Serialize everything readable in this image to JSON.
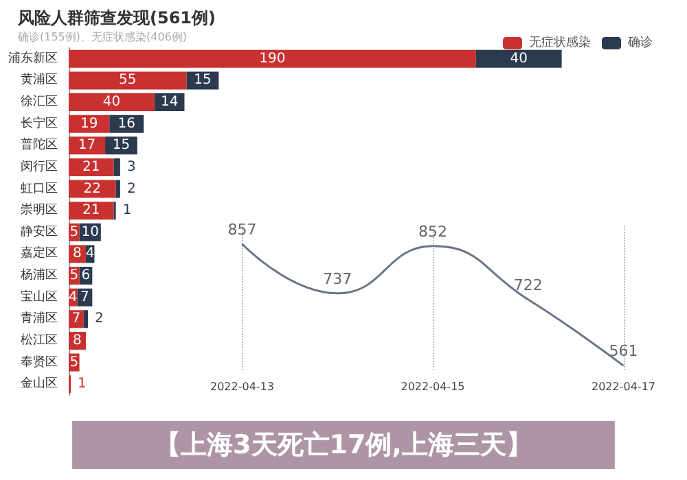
{
  "chart_data": [
    {
      "type": "bar",
      "orientation": "horizontal",
      "stacked": true,
      "title": "风险人群筛查发现(561例)",
      "subtitle": "确诊(155例)、无症状感染(406例)",
      "annotations": [
        "【上海3天死亡17例,上海三天】"
      ],
      "categories": [
        "浦东新区",
        "黄浦区",
        "徐汇区",
        "长宁区",
        "普陀区",
        "闵行区",
        "虹口区",
        "崇明区",
        "静安区",
        "嘉定区",
        "杨浦区",
        "宝山区",
        "青浦区",
        "松江区",
        "奉贤区",
        "金山区"
      ],
      "series": [
        {
          "name": "无症状感染",
          "color": "#c8312f",
          "values": [
            190,
            55,
            40,
            19,
            17,
            21,
            22,
            21,
            5,
            8,
            5,
            4,
            7,
            8,
            5,
            1
          ]
        },
        {
          "name": "确诊",
          "color": "#2b3a4f",
          "values": [
            40,
            15,
            14,
            16,
            15,
            3,
            2,
            1,
            10,
            4,
            6,
            7,
            2,
            null,
            null,
            null
          ]
        }
      ],
      "data_labels": true,
      "legend": "top right",
      "grid": false
    },
    {
      "type": "line",
      "categories": [
        "2022-04-13",
        null,
        "2022-04-15",
        null,
        "2022-04-17"
      ],
      "series": [
        {
          "color": "#6b7689",
          "values": [
            857,
            737,
            852,
            722,
            561
          ]
        }
      ],
      "data_labels": true,
      "marker": "none",
      "grid": "x",
      "line_style": "solid"
    }
  ]
}
